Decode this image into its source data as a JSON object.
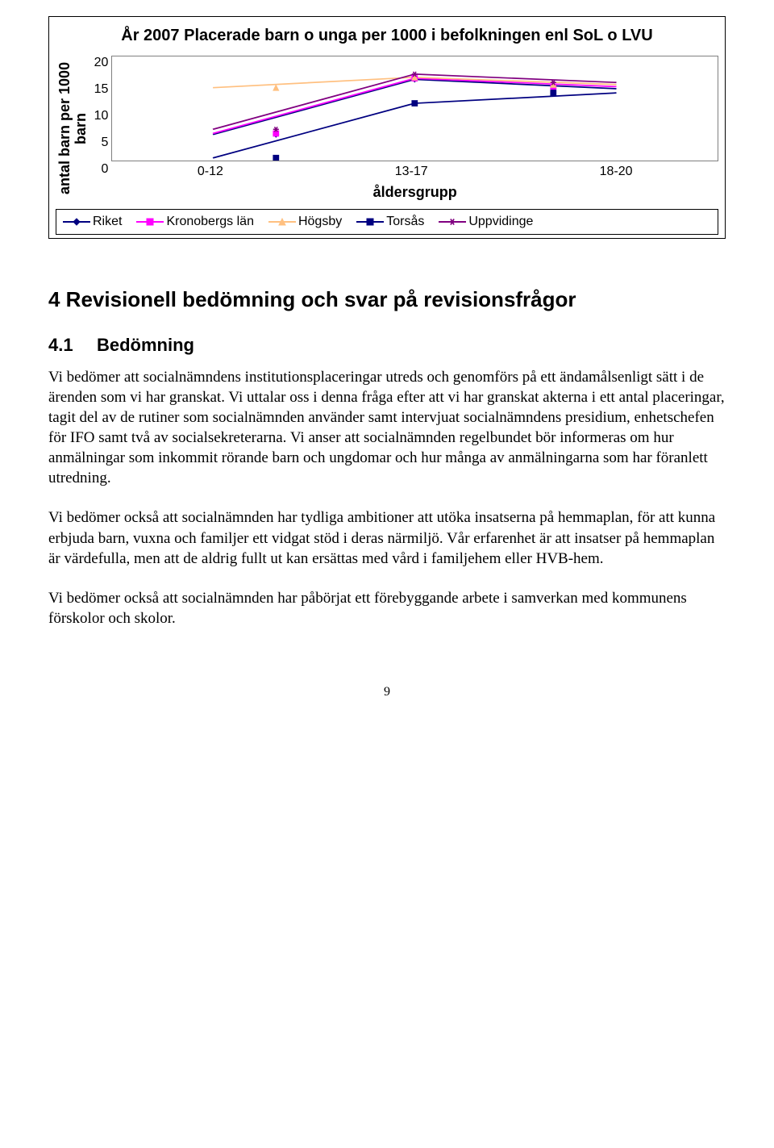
{
  "chart": {
    "type": "line",
    "title": "År 2007 Placerade barn o unga per 1000 i befolkningen enl SoL o LVU",
    "y_axis_label": "antal barn per 1000 barn",
    "x_axis_label": "åldersgrupp",
    "categories": [
      "0-12",
      "13-17",
      "18-20"
    ],
    "ylim": [
      0,
      20
    ],
    "ytick_step": 5,
    "yticks": [
      "20",
      "15",
      "10",
      "5",
      "0"
    ],
    "background_color": "#ffffff",
    "border_color": "#808080",
    "series": [
      {
        "name": "Riket",
        "color": "#000080",
        "marker": "diamond",
        "values": [
          5.0,
          15.6,
          13.8
        ]
      },
      {
        "name": "Kronobergs län",
        "color": "#ff00ff",
        "marker": "square",
        "values": [
          5.2,
          15.8,
          14.2
        ]
      },
      {
        "name": "Högsby",
        "color": "#ffc080",
        "marker": "triangle",
        "values": [
          14.0,
          16.0,
          14.6
        ]
      },
      {
        "name": "Torsås",
        "color": "#000080",
        "marker": "square",
        "values": [
          0.5,
          11.0,
          13.0
        ]
      },
      {
        "name": "Uppvidinge",
        "color": "#800080",
        "marker": "star",
        "values": [
          6.0,
          16.6,
          15.0
        ]
      }
    ],
    "line_width": 2,
    "marker_size": 8,
    "title_fontsize": 20,
    "axis_label_fontsize": 18,
    "tick_fontsize": 16
  },
  "sections": {
    "h2": "4   Revisionell bedömning och svar på revisionsfrågor",
    "h3_num": "4.1",
    "h3_title": "Bedömning",
    "p1": "Vi bedömer att socialnämndens institutionsplaceringar utreds och genomförs på ett ändamålsenligt sätt i de ärenden som vi har granskat. Vi uttalar oss i denna fråga efter att vi har granskat akterna i ett antal placeringar, tagit del av de rutiner som socialnämnden använder samt intervjuat socialnämndens presidium, enhetschefen för IFO samt två av socialsekreterarna. Vi anser att socialnämnden regelbundet bör informeras om hur anmälningar som inkommit rörande barn och ungdomar och hur många av anmälningarna som har föranlett utredning.",
    "p2": "Vi bedömer också att socialnämnden har tydliga ambitioner att utöka insatserna på hemmaplan, för att kunna erbjuda barn, vuxna och familjer ett vidgat stöd i deras närmiljö. Vår erfarenhet är att insatser på hemmaplan är värdefulla, men att de aldrig fullt ut kan ersättas med vård i familjehem eller HVB-hem.",
    "p3": "Vi bedömer också att socialnämnden har påbörjat ett förebyggande arbete i samverkan med kommunens förskolor och skolor."
  },
  "page_number": "9"
}
